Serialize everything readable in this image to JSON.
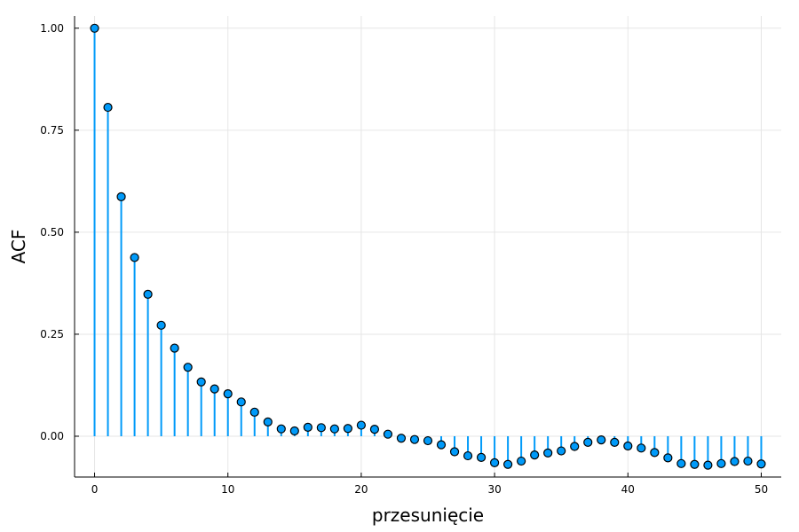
{
  "chart_data": {
    "type": "stem",
    "xlabel": "przesunięcie",
    "ylabel": "ACF",
    "xlim": [
      -1.5,
      51.5
    ],
    "ylim": [
      -0.1,
      1.03
    ],
    "xticks": [
      0,
      10,
      20,
      30,
      40,
      50
    ],
    "xtick_labels": [
      "0",
      "10",
      "20",
      "30",
      "40",
      "50"
    ],
    "yticks": [
      0.0,
      0.25,
      0.5,
      0.75,
      1.0
    ],
    "ytick_labels": [
      "0.00",
      "0.25",
      "0.50",
      "0.75",
      "1.00"
    ],
    "grid": true,
    "legend": "none",
    "colors": {
      "stem": "#009af9",
      "marker_fill": "#009af9",
      "marker_edge": "#000000",
      "grid": "#e6e6e6",
      "axis": "#000000"
    },
    "x": [
      0,
      1,
      2,
      3,
      4,
      5,
      6,
      7,
      8,
      9,
      10,
      11,
      12,
      13,
      14,
      15,
      16,
      17,
      18,
      19,
      20,
      21,
      22,
      23,
      24,
      25,
      26,
      27,
      28,
      29,
      30,
      31,
      32,
      33,
      34,
      35,
      36,
      37,
      38,
      39,
      40,
      41,
      42,
      43,
      44,
      45,
      46,
      47,
      48,
      49,
      50
    ],
    "y": [
      1.0,
      0.806,
      0.587,
      0.438,
      0.348,
      0.272,
      0.216,
      0.169,
      0.133,
      0.116,
      0.104,
      0.084,
      0.059,
      0.035,
      0.018,
      0.013,
      0.022,
      0.021,
      0.018,
      0.019,
      0.027,
      0.017,
      0.005,
      -0.005,
      -0.008,
      -0.011,
      -0.021,
      -0.038,
      -0.048,
      -0.052,
      -0.065,
      -0.069,
      -0.061,
      -0.046,
      -0.041,
      -0.036,
      -0.025,
      -0.015,
      -0.009,
      -0.015,
      -0.024,
      -0.029,
      -0.04,
      -0.053,
      -0.067,
      -0.069,
      -0.071,
      -0.067,
      -0.062,
      -0.061,
      -0.068
    ]
  }
}
